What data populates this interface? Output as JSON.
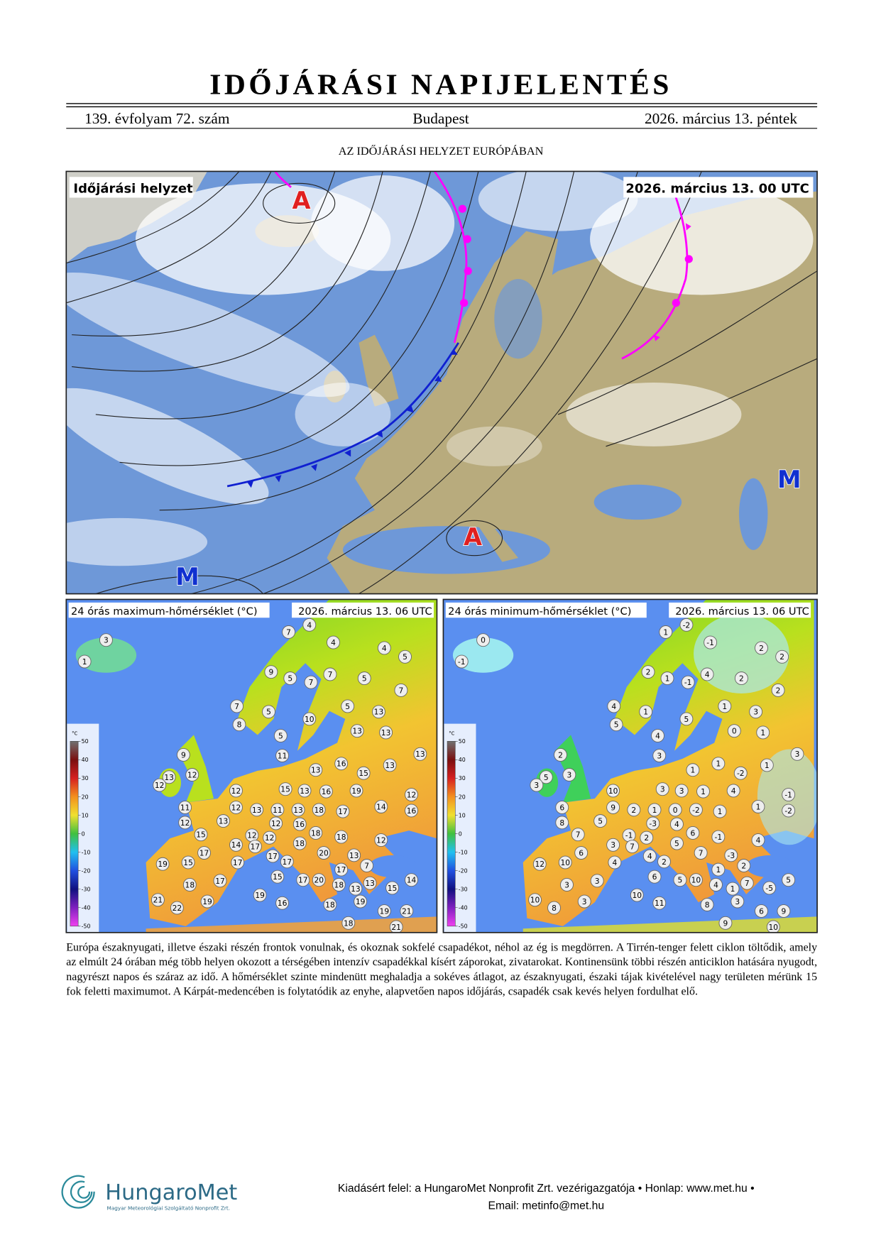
{
  "header": {
    "title": "IDŐJÁRÁSI NAPIJELENTÉS",
    "volume": "139. évfolyam 72. szám",
    "city": "Budapest",
    "date": "2026. március 13. péntek"
  },
  "section_title": "AZ IDŐJÁRÁSI HELYZET EURÓPÁBAN",
  "synoptic_map": {
    "label": "Időjárási helyzet",
    "timestamp": "2026. március 13. 00 UTC",
    "pressure_centers": [
      "A",
      "A",
      "M",
      "M"
    ]
  },
  "max_temp_map": {
    "title": "24 órás maximum-hőmérséklet (°C)",
    "timestamp": "2026. március 13. 06 UTC",
    "scale_unit": "°C",
    "scale_ticks": [
      50,
      40,
      30,
      20,
      10,
      0,
      -10,
      -20,
      -30,
      -40,
      -50
    ],
    "stations": [
      3,
      1,
      7,
      4,
      4,
      4,
      5,
      9,
      5,
      7,
      7,
      5,
      7,
      7,
      5,
      8,
      10,
      5,
      13,
      13,
      13,
      5,
      9,
      11,
      13,
      13,
      12,
      13,
      16,
      15,
      13,
      12,
      12,
      15,
      13,
      16,
      19,
      12,
      12,
      13,
      11,
      11,
      13,
      18,
      17,
      14,
      16,
      12,
      13,
      12,
      16,
      15,
      12,
      12,
      18,
      18,
      12,
      14,
      17,
      18,
      17,
      17,
      20,
      13,
      19,
      15,
      17,
      17,
      17,
      7,
      15,
      17,
      20,
      18,
      13,
      18,
      17,
      14,
      15,
      19,
      13,
      21,
      19,
      16,
      19,
      22,
      18,
      19,
      21,
      18,
      21
    ]
  },
  "min_temp_map": {
    "title": "24 órás minimum-hőmérséklet (°C)",
    "timestamp": "2026. március 13. 06 UTC",
    "scale_unit": "°C",
    "scale_ticks": [
      50,
      40,
      30,
      20,
      10,
      0,
      -10,
      -20,
      -30,
      -40,
      -50
    ],
    "stations": [
      0,
      -1,
      1,
      -2,
      -1,
      2,
      2,
      2,
      1,
      -1,
      4,
      2,
      2,
      4,
      1,
      5,
      5,
      1,
      3,
      0,
      1,
      4,
      2,
      3,
      3,
      5,
      3,
      1,
      1,
      -2,
      1,
      3,
      10,
      3,
      3,
      1,
      4,
      -1,
      9,
      2,
      6,
      1,
      0,
      -2,
      1,
      1,
      -2,
      8,
      5,
      -3,
      4,
      7,
      -1,
      2,
      6,
      -1,
      4,
      3,
      7,
      5,
      6,
      4,
      7,
      -3,
      12,
      10,
      4,
      2,
      1,
      2,
      6,
      5,
      10,
      4,
      7,
      3,
      3,
      5,
      -5,
      10,
      1,
      10,
      3,
      11,
      3,
      8,
      8,
      6,
      9,
      9,
      10
    ]
  },
  "body_text": "Európa északnyugati, illetve északi részén frontok vonulnak, és okoznak sokfelé csapadékot, néhol az ég is megdörren. A Tirrén-tenger felett ciklon töltődik, amely az elmúlt 24 órában még több helyen okozott a térségében intenzív csapadékkal kísért záporokat, zivatarokat. Kontinensünk többi részén anticiklon hatására nyugodt, nagyrészt napos és száraz az idő. A hőmérséklet szinte mindenütt meghaladja a sokéves átlagot, az északnyugati, északi tájak kivételével nagy területen mérünk 15 fok feletti maximumot. A Kárpát-medencében is folytatódik az enyhe, alapvetően napos időjárás, csapadék csak kevés helyen fordulhat elő.",
  "footer": {
    "logo_name": "HungaroMet",
    "logo_subtitle": "Magyar Meteorológiai Szolgáltató Nonprofit Zrt.",
    "line1": "Kiadásért felel: a HungaroMet Nonprofit Zrt. vezérigazgatója • Honlap: www.met.hu •",
    "line2": "Email: metinfo@met.hu"
  }
}
